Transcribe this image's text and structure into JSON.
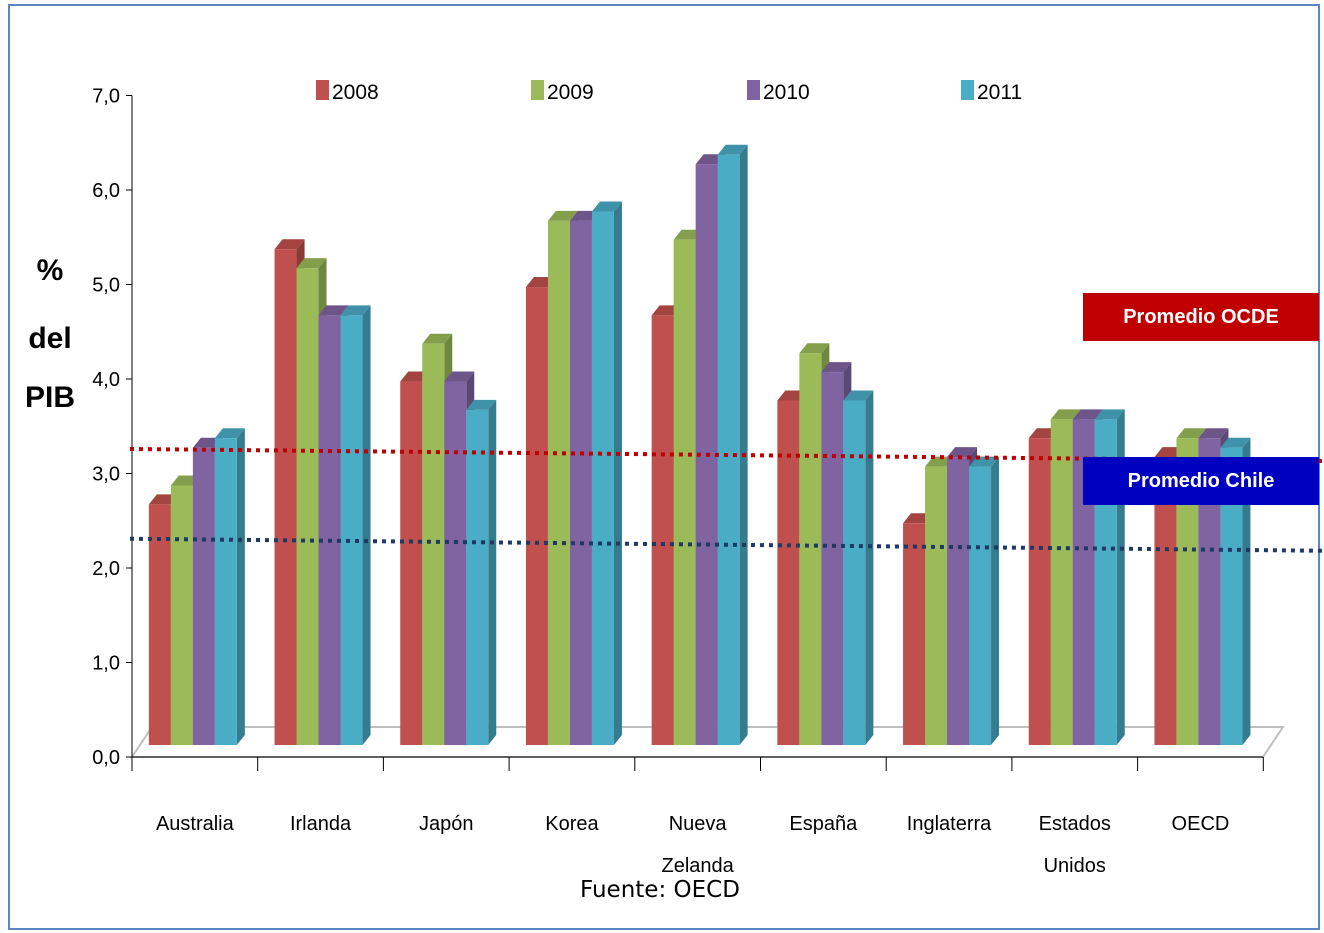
{
  "chart_data": {
    "type": "bar",
    "ylabel": [
      "%",
      "del",
      "PIB"
    ],
    "y_ticks": [
      "0,0",
      "1,0",
      "2,0",
      "3,0",
      "4,0",
      "5,0",
      "6,0",
      "7,0"
    ],
    "ylim": [
      0,
      7
    ],
    "categories": [
      [
        "Australia"
      ],
      [
        "Irlanda"
      ],
      [
        "Japón"
      ],
      [
        "Korea"
      ],
      [
        "Nueva",
        "Zelanda"
      ],
      [
        "España"
      ],
      [
        "Inglaterra"
      ],
      [
        "Estados",
        "Unidos"
      ],
      [
        "OECD"
      ]
    ],
    "series": [
      {
        "name": "2008",
        "color": "#c0504d",
        "values": [
          2.8,
          5.5,
          4.1,
          5.1,
          4.8,
          3.9,
          2.6,
          3.5,
          3.3
        ]
      },
      {
        "name": "2009",
        "color": "#9bbb59",
        "values": [
          3.0,
          5.3,
          4.5,
          5.8,
          5.6,
          4.4,
          3.2,
          3.7,
          3.5
        ]
      },
      {
        "name": "2010",
        "color": "#8064a2",
        "values": [
          3.4,
          4.8,
          4.1,
          5.8,
          6.4,
          4.2,
          3.3,
          3.7,
          3.5
        ]
      },
      {
        "name": "2011",
        "color": "#4bacc6",
        "values": [
          3.5,
          4.8,
          3.8,
          5.9,
          6.5,
          3.9,
          3.2,
          3.7,
          3.4
        ]
      }
    ],
    "reference_lines": [
      {
        "label": "Promedio OCDE",
        "value": 3.45,
        "color": "#c00000"
      },
      {
        "label": "Promedio Chile",
        "value": 2.5,
        "color": "#1f3864"
      }
    ],
    "legend_position": "top",
    "grid": false
  },
  "labels": {
    "promedio_ocde": "Promedio OCDE",
    "promedio_chile": "Promedio Chile",
    "source": "Fuente: OECD"
  },
  "colors": {
    "promedio_ocde_box": "#c00000",
    "promedio_chile_box": "#0000c0"
  }
}
